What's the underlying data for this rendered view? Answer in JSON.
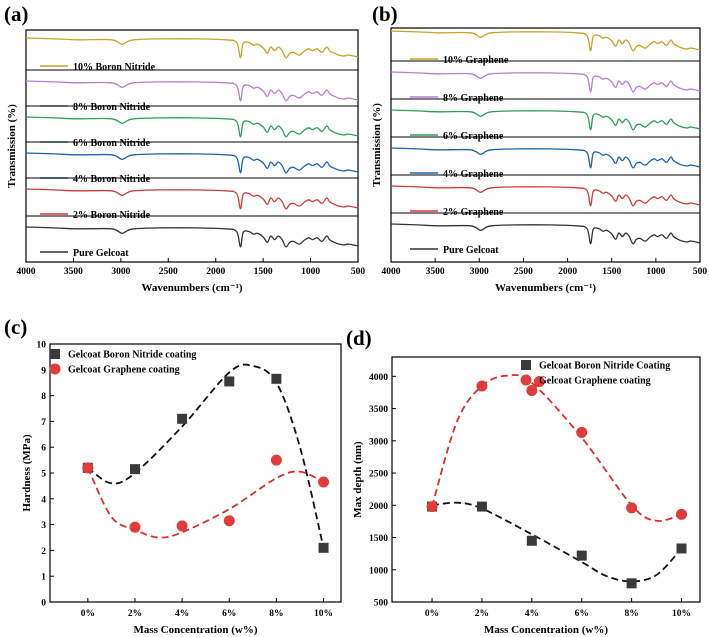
{
  "chart_data": [
    {
      "panel_label": "(a)",
      "type": "line",
      "title": "",
      "xlabel": "Wavenumbers (cm⁻¹)",
      "ylabel": "Transmission (%)",
      "xlim": [
        4000,
        500
      ],
      "x_ticks": [
        "4000",
        "3500",
        "3000",
        "2500",
        "2000",
        "1500",
        "1000",
        "500"
      ],
      "x_tick_values": [
        4000,
        3500,
        3000,
        2500,
        2000,
        1500,
        1000,
        500
      ],
      "series": [
        {
          "name": "10% Boron Nitride",
          "color": "#c9a227"
        },
        {
          "name": "8% Boron Nitride",
          "color": "#b57fd0"
        },
        {
          "name": "6% Boron Nitride",
          "color": "#2e9e5b"
        },
        {
          "name": "4% Boron Nitride",
          "color": "#1f5fb5"
        },
        {
          "name": "2% Boron Nitride",
          "color": "#d23a3a"
        },
        {
          "name": "Pure Gelcoat",
          "color": "#333333"
        }
      ]
    },
    {
      "panel_label": "(b)",
      "type": "line",
      "title": "",
      "xlabel": "Wavenumbers (cm⁻¹)",
      "ylabel": "Transmission (%)",
      "xlim": [
        4000,
        500
      ],
      "x_ticks": [
        "4000",
        "3500",
        "3000",
        "2500",
        "2000",
        "1500",
        "1000",
        "500"
      ],
      "x_tick_values": [
        4000,
        3500,
        3000,
        2500,
        2000,
        1500,
        1000,
        500
      ],
      "series": [
        {
          "name": "10% Graphene",
          "color": "#c9a227"
        },
        {
          "name": "8% Graphene",
          "color": "#b57fd0"
        },
        {
          "name": "6% Graphene",
          "color": "#2e9e5b"
        },
        {
          "name": "4% Graphene",
          "color": "#1f5fb5"
        },
        {
          "name": "2% Graphene",
          "color": "#d23a3a"
        },
        {
          "name": "Pure Gelcoat",
          "color": "#333333"
        }
      ]
    },
    {
      "panel_label": "(c)",
      "type": "scatter",
      "title": "",
      "xlabel": "Mass Concentration (w%)",
      "ylabel": "Hardness (MPa)",
      "categories": [
        "0%",
        "2%",
        "4%",
        "6%",
        "8%",
        "10%"
      ],
      "ylim": [
        0,
        10
      ],
      "y_ticks": [
        "0",
        "1",
        "2",
        "3",
        "4",
        "5",
        "6",
        "7",
        "8",
        "9",
        "10"
      ],
      "y_tick_values": [
        0,
        1,
        2,
        3,
        4,
        5,
        6,
        7,
        8,
        9,
        10
      ],
      "series": [
        {
          "name": "Gelcoat Boron Nitride coating",
          "marker": "square",
          "color": "#3a3a3a",
          "values": [
            5.2,
            5.15,
            7.1,
            8.55,
            8.65,
            2.1
          ]
        },
        {
          "name": "Gelcoat Graphene coating",
          "marker": "circle",
          "color": "#e23b3b",
          "values": [
            5.2,
            2.9,
            2.95,
            3.15,
            5.5,
            4.65
          ]
        }
      ]
    },
    {
      "panel_label": "(d)",
      "type": "scatter",
      "title": "",
      "xlabel": "Mass Concentration (w%)",
      "ylabel": "Max depth (nm)",
      "categories": [
        "0%",
        "2%",
        "4%",
        "6%",
        "8%",
        "10%"
      ],
      "ylim": [
        500,
        4300
      ],
      "y_ticks": [
        "500",
        "1000",
        "1500",
        "2000",
        "2500",
        "3000",
        "3500",
        "4000"
      ],
      "y_tick_values": [
        500,
        1000,
        1500,
        2000,
        2500,
        3000,
        3500,
        4000
      ],
      "series": [
        {
          "name": "Gelcoat Boron Nitride Coating",
          "marker": "square",
          "color": "#3a3a3a",
          "values": [
            1980,
            1980,
            1450,
            1220,
            790,
            1330
          ]
        },
        {
          "name": "Gelcoat Graphene coating",
          "marker": "circle",
          "color": "#e23b3b",
          "points": [
            [
              0,
              1980
            ],
            [
              2,
              3850
            ],
            [
              4,
              3780
            ],
            [
              4.3,
              3920
            ],
            [
              6,
              3130
            ],
            [
              8,
              1960
            ],
            [
              10,
              1860
            ]
          ]
        }
      ]
    }
  ]
}
